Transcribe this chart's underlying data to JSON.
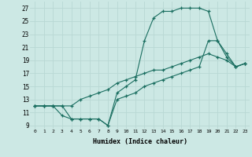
{
  "xlabel": "Humidex (Indice chaleur)",
  "background_color": "#cce8e4",
  "grid_color": "#b8d8d4",
  "line_color": "#1a6e60",
  "xlim": [
    -0.5,
    23.5
  ],
  "ylim": [
    8.5,
    28
  ],
  "xticks": [
    0,
    1,
    2,
    3,
    4,
    5,
    6,
    7,
    8,
    9,
    10,
    11,
    12,
    13,
    14,
    15,
    16,
    17,
    18,
    19,
    20,
    21,
    22,
    23
  ],
  "yticks": [
    9,
    11,
    13,
    15,
    17,
    19,
    21,
    23,
    25,
    27
  ],
  "line1_x": [
    0,
    1,
    2,
    3,
    4,
    5,
    6,
    7,
    8,
    9,
    10,
    11,
    12,
    13,
    14,
    15,
    16,
    17,
    18,
    19,
    20,
    21,
    22,
    23
  ],
  "line1_y": [
    12,
    12,
    12,
    12,
    10,
    10,
    10,
    10,
    9,
    14,
    15,
    16,
    22,
    25.5,
    26.5,
    26.5,
    27,
    27,
    27,
    26.5,
    22,
    20,
    18,
    18.5
  ],
  "line2_x": [
    0,
    1,
    2,
    3,
    4,
    5,
    6,
    7,
    8,
    9,
    10,
    11,
    12,
    13,
    14,
    15,
    16,
    17,
    18,
    19,
    20,
    21,
    22,
    23
  ],
  "line2_y": [
    12,
    12,
    12,
    12,
    12,
    13,
    13.5,
    14,
    14.5,
    15.5,
    16,
    16.5,
    17,
    17.5,
    17.5,
    18,
    18.5,
    19,
    19.5,
    20,
    19.5,
    19,
    18,
    18.5
  ],
  "line3_x": [
    0,
    1,
    2,
    3,
    4,
    5,
    6,
    7,
    8,
    9,
    10,
    11,
    12,
    13,
    14,
    15,
    16,
    17,
    18,
    19,
    20,
    21,
    22,
    23
  ],
  "line3_y": [
    12,
    12,
    12,
    10.5,
    10,
    10,
    10,
    10,
    9,
    13,
    13.5,
    14,
    15,
    15.5,
    16,
    16.5,
    17,
    17.5,
    18,
    22,
    22,
    19.5,
    18,
    18.5
  ]
}
